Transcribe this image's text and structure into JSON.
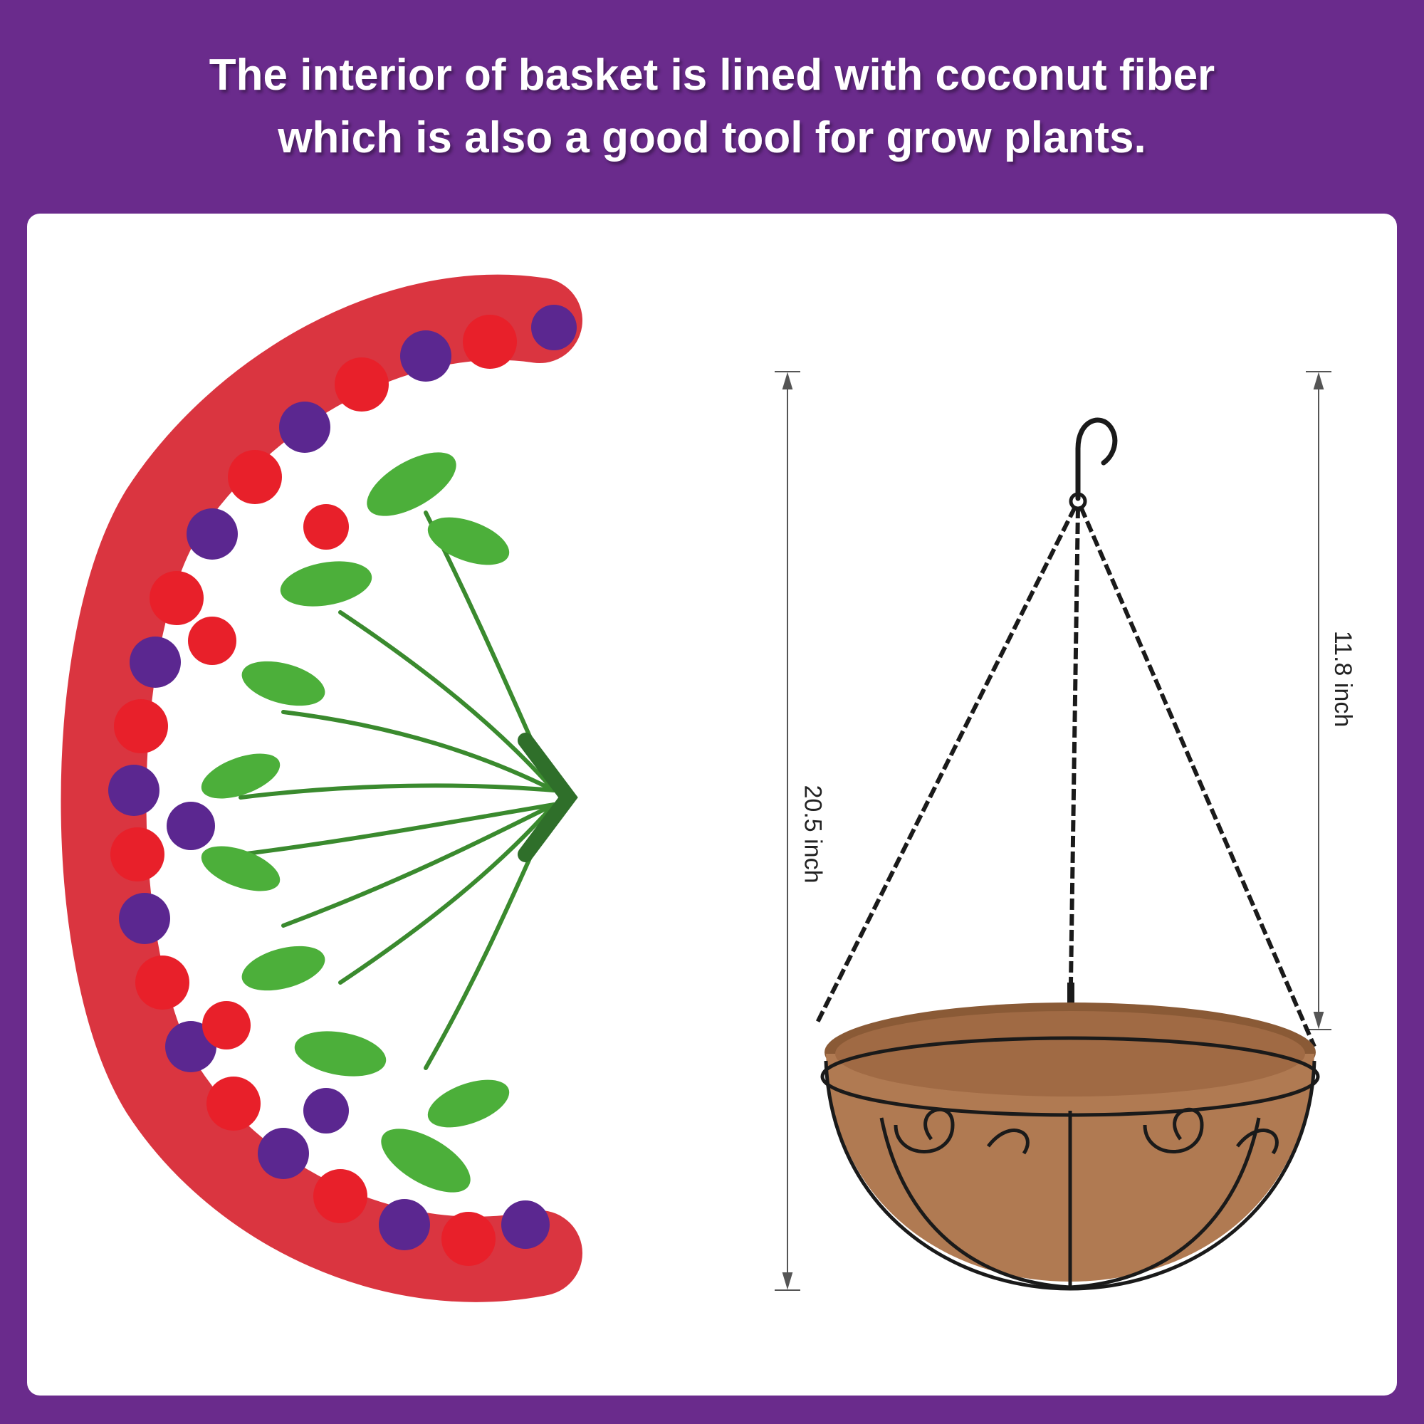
{
  "headline": {
    "line1": "The interior of basket is lined with coconut fiber",
    "line2": "which is also a good tool for grow plants."
  },
  "dimensions": {
    "total_length": "20.5 inch",
    "chain_length": "11.8 inch"
  },
  "colors": {
    "background": "#6a2b8c",
    "panel": "#ffffff",
    "flower_red": "#e8202a",
    "flower_purple": "#5b2790",
    "leaf_green": "#3f9d2f",
    "coco_fiber": "#b07a52",
    "wire": "#1a1a1a"
  }
}
